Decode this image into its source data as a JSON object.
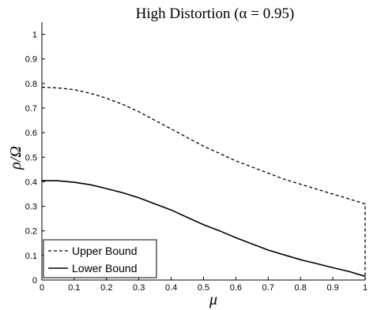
{
  "chart_data": {
    "type": "line",
    "title": "High Distortion (α = 0.95)",
    "xlabel": "μ",
    "ylabel": "ρ/Ω",
    "xlim": [
      0,
      1
    ],
    "ylim": [
      0,
      1.05
    ],
    "xticks": [
      0,
      0.1,
      0.2,
      0.3,
      0.4,
      0.5,
      0.6,
      0.7,
      0.8,
      0.9,
      1
    ],
    "xtick_labels": [
      "0",
      "0.1",
      "0.2",
      "0.3",
      "0.4",
      "0.5",
      "0.6",
      "0.7",
      "0.8",
      "0.9",
      "1"
    ],
    "yticks": [
      0,
      0.1,
      0.2,
      0.3,
      0.4,
      0.5,
      0.6,
      0.7,
      0.8,
      0.9,
      1
    ],
    "ytick_labels": [
      "0",
      "0.1",
      "0.2",
      "0.3",
      "0.4",
      "0.5",
      "0.6",
      "0.7",
      "0.8",
      "0.9",
      "1"
    ],
    "grid": false,
    "legend_position": "bottom-left",
    "series": [
      {
        "name": "Upper Bound",
        "style": "dashed",
        "color": "#000000",
        "x": [
          0,
          0.05,
          0.1,
          0.15,
          0.2,
          0.25,
          0.3,
          0.35,
          0.4,
          0.45,
          0.5,
          0.55,
          0.6,
          0.65,
          0.7,
          0.75,
          0.8,
          0.85,
          0.9,
          0.95,
          1,
          1
        ],
        "y": [
          0.785,
          0.782,
          0.775,
          0.76,
          0.74,
          0.715,
          0.685,
          0.65,
          0.615,
          0.58,
          0.545,
          0.515,
          0.485,
          0.46,
          0.435,
          0.41,
          0.39,
          0.37,
          0.35,
          0.33,
          0.31,
          0.0
        ]
      },
      {
        "name": "Lower Bound",
        "style": "solid",
        "color": "#000000",
        "x": [
          0,
          0.05,
          0.1,
          0.15,
          0.2,
          0.25,
          0.3,
          0.35,
          0.4,
          0.45,
          0.5,
          0.55,
          0.6,
          0.65,
          0.7,
          0.75,
          0.8,
          0.85,
          0.9,
          0.95,
          1
        ],
        "y": [
          0.405,
          0.404,
          0.398,
          0.388,
          0.372,
          0.355,
          0.335,
          0.31,
          0.285,
          0.255,
          0.225,
          0.2,
          0.172,
          0.147,
          0.122,
          0.102,
          0.083,
          0.067,
          0.05,
          0.035,
          0.015
        ]
      }
    ]
  }
}
